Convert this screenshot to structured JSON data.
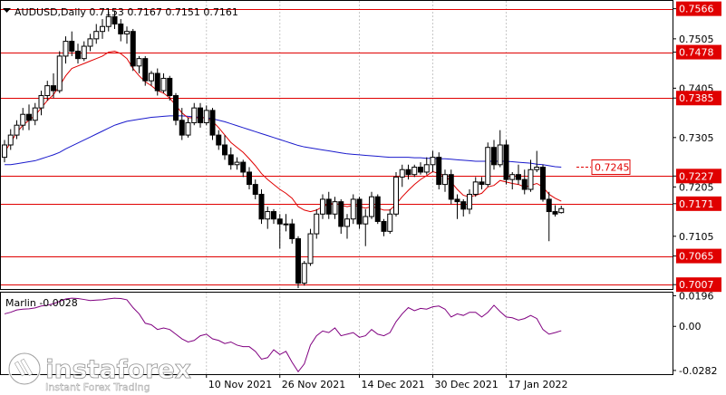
{
  "header": {
    "symbol_info": "AUDUSD,Daily  0.7153 0.7167 0.7151 0.7161"
  },
  "indicator": {
    "label": "Marlin -0.0028",
    "y_ticks": [
      "0.0196",
      "0.00",
      "-0.0282"
    ]
  },
  "watermark": {
    "brand": "instaforex",
    "tagline": "Instant Forex Trading"
  },
  "callout": {
    "label": "0.7245",
    "value": 0.7245
  },
  "colors": {
    "level_line": "#e00000",
    "level_badge": "#e00000",
    "ma_fast": "#e00000",
    "ma_slow": "#1a1acc",
    "oscillator": "#800080",
    "grid": "#c8c8c8"
  },
  "chart_data": [
    {
      "type": "candlestick",
      "ylim": [
        0.7,
        0.758
      ],
      "y_ticks": [
        {
          "label": "0.7566",
          "value": 0.7566,
          "badge": true
        },
        {
          "label": "0.7505",
          "value": 0.7505,
          "badge": false
        },
        {
          "label": "0.7478",
          "value": 0.7478,
          "badge": true
        },
        {
          "label": "0.7405",
          "value": 0.7405,
          "badge": false
        },
        {
          "label": "0.7385",
          "value": 0.7385,
          "badge": true
        },
        {
          "label": "0.7305",
          "value": 0.7305,
          "badge": false
        },
        {
          "label": "0.7227",
          "value": 0.7227,
          "badge": true
        },
        {
          "label": "0.7205",
          "value": 0.7205,
          "badge": false
        },
        {
          "label": "0.7171",
          "value": 0.7171,
          "badge": true
        },
        {
          "label": "0.7105",
          "value": 0.7105,
          "badge": false
        },
        {
          "label": "0.7065",
          "value": 0.7065,
          "badge": true
        },
        {
          "label": "0.7007",
          "value": 0.7007,
          "badge": true
        }
      ],
      "levels": [
        0.7566,
        0.7478,
        0.7385,
        0.7227,
        0.7171,
        0.7065,
        0.7007
      ],
      "x_labels": [
        {
          "label": "10 Nov 2021",
          "index": 33
        },
        {
          "label": "26 Nov 2021",
          "index": 45
        },
        {
          "label": "14 Dec 2021",
          "index": 58
        },
        {
          "label": "30 Dec 2021",
          "index": 70
        },
        {
          "label": "17 Jan 2022",
          "index": 82
        }
      ],
      "candles": [
        [
          0.7265,
          0.73,
          0.7255,
          0.729
        ],
        [
          0.729,
          0.7322,
          0.728,
          0.731
        ],
        [
          0.731,
          0.734,
          0.7302,
          0.733
        ],
        [
          0.733,
          0.7365,
          0.732,
          0.7352
        ],
        [
          0.7352,
          0.7372,
          0.732,
          0.734
        ],
        [
          0.734,
          0.7375,
          0.733,
          0.7365
        ],
        [
          0.7365,
          0.74,
          0.735,
          0.739
        ],
        [
          0.739,
          0.742,
          0.738,
          0.741
        ],
        [
          0.741,
          0.7435,
          0.7385,
          0.74
        ],
        [
          0.74,
          0.748,
          0.7395,
          0.747
        ],
        [
          0.747,
          0.751,
          0.7455,
          0.75
        ],
        [
          0.75,
          0.752,
          0.747,
          0.748
        ],
        [
          0.748,
          0.7495,
          0.7455,
          0.7465
        ],
        [
          0.7465,
          0.75,
          0.746,
          0.749
        ],
        [
          0.749,
          0.7515,
          0.748,
          0.7505
        ],
        [
          0.7505,
          0.7535,
          0.7495,
          0.752
        ],
        [
          0.752,
          0.7545,
          0.7505,
          0.753
        ],
        [
          0.753,
          0.756,
          0.752,
          0.755
        ],
        [
          0.755,
          0.7562,
          0.7525,
          0.7535
        ],
        [
          0.7535,
          0.7545,
          0.75,
          0.7515
        ],
        [
          0.7515,
          0.753,
          0.7495,
          0.752
        ],
        [
          0.752,
          0.7525,
          0.744,
          0.745
        ],
        [
          0.745,
          0.747,
          0.7435,
          0.7465
        ],
        [
          0.7465,
          0.747,
          0.741,
          0.742
        ],
        [
          0.742,
          0.744,
          0.741,
          0.7435
        ],
        [
          0.7435,
          0.7445,
          0.739,
          0.74
        ],
        [
          0.74,
          0.7435,
          0.7395,
          0.7425
        ],
        [
          0.7425,
          0.743,
          0.738,
          0.739
        ],
        [
          0.739,
          0.7395,
          0.733,
          0.734
        ],
        [
          0.734,
          0.7365,
          0.73,
          0.731
        ],
        [
          0.731,
          0.7345,
          0.7305,
          0.7335
        ],
        [
          0.7335,
          0.7375,
          0.733,
          0.7365
        ],
        [
          0.7365,
          0.7375,
          0.7325,
          0.7335
        ],
        [
          0.7335,
          0.737,
          0.733,
          0.736
        ],
        [
          0.736,
          0.7365,
          0.73,
          0.731
        ],
        [
          0.731,
          0.732,
          0.728,
          0.729
        ],
        [
          0.729,
          0.731,
          0.726,
          0.727
        ],
        [
          0.727,
          0.7285,
          0.724,
          0.725
        ],
        [
          0.725,
          0.7265,
          0.724,
          0.7255
        ],
        [
          0.7255,
          0.726,
          0.7225,
          0.7235
        ],
        [
          0.7235,
          0.7245,
          0.72,
          0.721
        ],
        [
          0.721,
          0.722,
          0.718,
          0.719
        ],
        [
          0.719,
          0.72,
          0.713,
          0.714
        ],
        [
          0.714,
          0.7165,
          0.712,
          0.7155
        ],
        [
          0.7155,
          0.716,
          0.713,
          0.714
        ],
        [
          0.714,
          0.715,
          0.708,
          0.713
        ],
        [
          0.713,
          0.715,
          0.7115,
          0.713
        ],
        [
          0.713,
          0.714,
          0.709,
          0.71
        ],
        [
          0.71,
          0.7105,
          0.7,
          0.701
        ],
        [
          0.701,
          0.7055,
          0.7005,
          0.705
        ],
        [
          0.705,
          0.712,
          0.7045,
          0.711
        ],
        [
          0.711,
          0.716,
          0.71,
          0.715
        ],
        [
          0.715,
          0.719,
          0.714,
          0.718
        ],
        [
          0.718,
          0.7195,
          0.714,
          0.715
        ],
        [
          0.715,
          0.7185,
          0.714,
          0.7175
        ],
        [
          0.7175,
          0.718,
          0.711,
          0.7125
        ],
        [
          0.7125,
          0.715,
          0.71,
          0.714
        ],
        [
          0.714,
          0.719,
          0.713,
          0.718
        ],
        [
          0.718,
          0.7185,
          0.712,
          0.713
        ],
        [
          0.713,
          0.716,
          0.7085,
          0.7145
        ],
        [
          0.7145,
          0.7195,
          0.714,
          0.7185
        ],
        [
          0.7185,
          0.719,
          0.713,
          0.7135
        ],
        [
          0.7135,
          0.714,
          0.7105,
          0.7115
        ],
        [
          0.7115,
          0.716,
          0.711,
          0.715
        ],
        [
          0.715,
          0.7235,
          0.7145,
          0.7225
        ],
        [
          0.7225,
          0.725,
          0.7205,
          0.724
        ],
        [
          0.724,
          0.725,
          0.722,
          0.723
        ],
        [
          0.723,
          0.725,
          0.7225,
          0.7245
        ],
        [
          0.7245,
          0.7255,
          0.723,
          0.7235
        ],
        [
          0.7235,
          0.7265,
          0.723,
          0.725
        ],
        [
          0.725,
          0.7278,
          0.7235,
          0.7265
        ],
        [
          0.7265,
          0.7275,
          0.72,
          0.721
        ],
        [
          0.721,
          0.724,
          0.7195,
          0.723
        ],
        [
          0.723,
          0.724,
          0.717,
          0.718
        ],
        [
          0.718,
          0.719,
          0.714,
          0.7175
        ],
        [
          0.7175,
          0.718,
          0.7145,
          0.716
        ],
        [
          0.716,
          0.72,
          0.715,
          0.719
        ],
        [
          0.719,
          0.7225,
          0.7185,
          0.7215
        ],
        [
          0.7215,
          0.7225,
          0.72,
          0.721
        ],
        [
          0.721,
          0.7295,
          0.7205,
          0.7285
        ],
        [
          0.7285,
          0.73,
          0.724,
          0.725
        ],
        [
          0.725,
          0.732,
          0.7245,
          0.729
        ],
        [
          0.729,
          0.73,
          0.721,
          0.722
        ],
        [
          0.722,
          0.7235,
          0.72,
          0.723
        ],
        [
          0.723,
          0.725,
          0.721,
          0.722
        ],
        [
          0.722,
          0.724,
          0.719,
          0.72
        ],
        [
          0.72,
          0.726,
          0.7195,
          0.724
        ],
        [
          0.724,
          0.7278,
          0.7235,
          0.7245
        ],
        [
          0.7245,
          0.725,
          0.7175,
          0.718
        ],
        [
          0.718,
          0.7195,
          0.7095,
          0.7155
        ],
        [
          0.7155,
          0.7168,
          0.7145,
          0.715
        ],
        [
          0.7153,
          0.7167,
          0.7151,
          0.7161
        ]
      ],
      "ma_fast": [
        0.7275,
        0.7295,
        0.7315,
        0.733,
        0.734,
        0.735,
        0.7365,
        0.738,
        0.7392,
        0.741,
        0.743,
        0.7445,
        0.745,
        0.7455,
        0.746,
        0.7465,
        0.747,
        0.7478,
        0.748,
        0.7475,
        0.7465,
        0.7445,
        0.743,
        0.7418,
        0.741,
        0.74,
        0.7395,
        0.7385,
        0.737,
        0.7355,
        0.7345,
        0.7345,
        0.7345,
        0.7345,
        0.7338,
        0.7325,
        0.731,
        0.7295,
        0.7285,
        0.7275,
        0.7262,
        0.7248,
        0.7232,
        0.722,
        0.721,
        0.72,
        0.7192,
        0.7182,
        0.7165,
        0.7158,
        0.7155,
        0.7158,
        0.7165,
        0.717,
        0.7172,
        0.7168,
        0.7165,
        0.7168,
        0.7165,
        0.7162,
        0.7165,
        0.7162,
        0.7158,
        0.7158,
        0.717,
        0.7185,
        0.7198,
        0.721,
        0.722,
        0.7228,
        0.7236,
        0.7232,
        0.7228,
        0.7215,
        0.72,
        0.7188,
        0.7185,
        0.7188,
        0.7192,
        0.7205,
        0.7208,
        0.7218,
        0.7215,
        0.7212,
        0.721,
        0.7205,
        0.7208,
        0.7212,
        0.7205,
        0.719,
        0.7182,
        0.7176
      ],
      "ma_slow": [
        0.725,
        0.725,
        0.7252,
        0.7254,
        0.7256,
        0.7258,
        0.7262,
        0.7266,
        0.727,
        0.7275,
        0.7282,
        0.7288,
        0.7294,
        0.73,
        0.7306,
        0.7312,
        0.7318,
        0.7324,
        0.733,
        0.7334,
        0.7338,
        0.734,
        0.7342,
        0.7344,
        0.7346,
        0.7347,
        0.7348,
        0.7349,
        0.7349,
        0.7349,
        0.7348,
        0.7347,
        0.7346,
        0.7345,
        0.7343,
        0.734,
        0.7337,
        0.7333,
        0.7329,
        0.7325,
        0.7321,
        0.7317,
        0.7313,
        0.7309,
        0.7305,
        0.7301,
        0.7297,
        0.7293,
        0.7289,
        0.7286,
        0.7284,
        0.7282,
        0.728,
        0.7278,
        0.7276,
        0.7274,
        0.7272,
        0.7271,
        0.727,
        0.7269,
        0.7268,
        0.7267,
        0.7266,
        0.7265,
        0.7265,
        0.7265,
        0.7265,
        0.7264,
        0.7264,
        0.7263,
        0.7263,
        0.7262,
        0.7262,
        0.7261,
        0.726,
        0.7259,
        0.7258,
        0.7257,
        0.7257,
        0.7257,
        0.7257,
        0.7257,
        0.7257,
        0.7256,
        0.7255,
        0.7254,
        0.7253,
        0.7251,
        0.725,
        0.7248,
        0.7246,
        0.7245
      ]
    },
    {
      "type": "line",
      "ylim": [
        -0.03,
        0.021
      ],
      "series": [
        {
          "values": [
            0.008,
            0.009,
            0.0105,
            0.011,
            0.0112,
            0.0118,
            0.013,
            0.0135,
            0.0145,
            0.016,
            0.0175,
            0.018,
            0.0178,
            0.0172,
            0.0165,
            0.0168,
            0.017,
            0.0176,
            0.018,
            0.0178,
            0.017,
            0.012,
            0.008,
            0.002,
            0.001,
            -0.002,
            -0.001,
            -0.002,
            -0.005,
            -0.008,
            -0.01,
            -0.009,
            -0.006,
            -0.005,
            -0.008,
            -0.009,
            -0.011,
            -0.01,
            -0.012,
            -0.013,
            -0.013,
            -0.016,
            -0.021,
            -0.02,
            -0.015,
            -0.018,
            -0.016,
            -0.023,
            -0.029,
            -0.024,
            -0.012,
            -0.006,
            -0.003,
            -0.004,
            -0.001,
            -0.006,
            -0.005,
            -0.004,
            -0.007,
            -0.006,
            -0.002,
            -0.005,
            -0.006,
            -0.004,
            0.003,
            0.008,
            0.012,
            0.01,
            0.0115,
            0.011,
            0.0125,
            0.013,
            0.011,
            0.006,
            0.008,
            0.007,
            0.009,
            0.009,
            0.006,
            0.009,
            0.0135,
            0.0095,
            0.006,
            0.0055,
            0.004,
            0.005,
            0.007,
            0.005,
            -0.002,
            -0.005,
            -0.004,
            -0.0028
          ]
        }
      ]
    }
  ]
}
